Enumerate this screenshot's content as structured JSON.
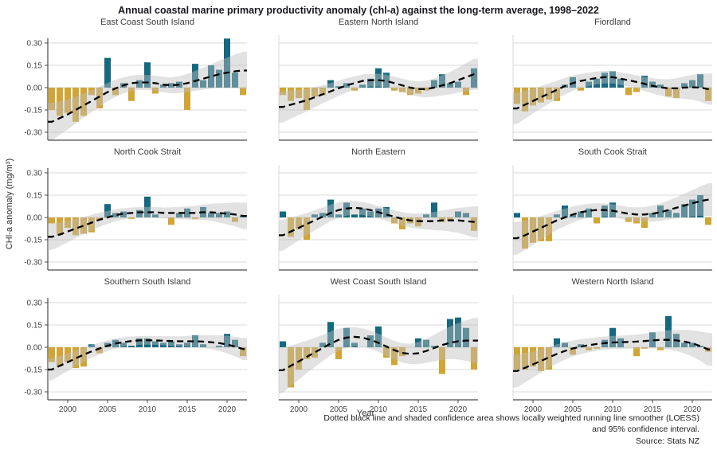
{
  "title": "Annual coastal marine primary productivity anomaly (chl-a) against the long-term average, 1998–2022",
  "y_axis": {
    "label": "CHl-a anomaly (mg/m³)",
    "ticks": [
      "0.30",
      "0.15",
      "0.00",
      "-0.15",
      "-0.30"
    ],
    "tick_values": [
      0.3,
      0.15,
      0,
      -0.15,
      -0.3
    ]
  },
  "x_axis": {
    "label": "Year",
    "ticks": [
      "2000",
      "2005",
      "2010",
      "2015",
      "2020"
    ],
    "tick_years": [
      2000,
      2005,
      2010,
      2015,
      2020
    ]
  },
  "footnote": "Dotted black line and shaded confidence area shows locally weighted running line smoother (LOESS) and 95% confidence interval.",
  "source": "Source: Stats NZ",
  "colors": {
    "positive": "#15687F",
    "negative": "#D0A535",
    "band": "#BFBFBF",
    "loess": "#000000",
    "grid": "#D8D8D8",
    "axis": "#4A4A4A",
    "tick_text": "#444444"
  },
  "chart_data": {
    "type": "bar",
    "title": "Annual coastal marine primary productivity anomaly (chl-a) against the long-term average, 1998–2022",
    "xlabel": "Year",
    "ylabel": "CHl-a anomaly (mg/m³)",
    "ylim": [
      -0.35,
      0.35
    ],
    "grid": true,
    "x": [
      1998,
      1999,
      2000,
      2001,
      2002,
      2003,
      2004,
      2005,
      2006,
      2007,
      2008,
      2009,
      2010,
      2011,
      2012,
      2013,
      2014,
      2015,
      2016,
      2017,
      2018,
      2019,
      2020,
      2021,
      2022
    ],
    "series": [
      {
        "name": "East Coast South Island",
        "values": [
          -0.15,
          -0.19,
          -0.17,
          -0.23,
          -0.19,
          -0.05,
          -0.14,
          0.2,
          -0.05,
          0.03,
          -0.09,
          0.05,
          0.17,
          -0.04,
          0.02,
          0.03,
          0.04,
          -0.15,
          0.16,
          0.05,
          0.15,
          0.12,
          0.33,
          0.1,
          -0.05
        ],
        "loess": [
          -0.23,
          -0.205,
          -0.18,
          -0.15,
          -0.12,
          -0.09,
          -0.06,
          -0.03,
          -0.005,
          0.015,
          0.03,
          0.035,
          0.035,
          0.03,
          0.02,
          0.015,
          0.02,
          0.03,
          0.045,
          0.06,
          0.075,
          0.09,
          0.1,
          0.11,
          0.115
        ],
        "ci_scale": 1.2
      },
      {
        "name": "Eastern North Island",
        "values": [
          -0.05,
          -0.09,
          -0.07,
          -0.15,
          -0.06,
          -0.05,
          0.05,
          0.01,
          0.03,
          -0.02,
          0.02,
          0.06,
          0.13,
          0.1,
          -0.02,
          -0.03,
          -0.05,
          -0.04,
          -0.02,
          0.05,
          0.09,
          0.03,
          0.04,
          -0.05,
          0.13
        ],
        "loess": [
          -0.13,
          -0.115,
          -0.1,
          -0.085,
          -0.065,
          -0.045,
          -0.025,
          -0.005,
          0.015,
          0.03,
          0.045,
          0.05,
          0.05,
          0.045,
          0.03,
          0.015,
          0.0,
          -0.01,
          -0.01,
          0.0,
          0.015,
          0.03,
          0.05,
          0.07,
          0.09
        ],
        "ci_scale": 1.0
      },
      {
        "name": "Fiordland",
        "values": [
          -0.11,
          -0.16,
          -0.12,
          -0.1,
          -0.08,
          -0.09,
          0.02,
          0.07,
          -0.02,
          0.04,
          0.06,
          0.1,
          0.11,
          0.06,
          -0.05,
          -0.03,
          0.08,
          0.04,
          0.02,
          -0.06,
          -0.07,
          0.03,
          0.05,
          0.09,
          -0.09
        ],
        "loess": [
          -0.14,
          -0.115,
          -0.09,
          -0.065,
          -0.04,
          -0.015,
          0.01,
          0.03,
          0.045,
          0.055,
          0.065,
          0.07,
          0.07,
          0.06,
          0.05,
          0.038,
          0.025,
          0.012,
          0.002,
          -0.005,
          -0.005,
          0.0,
          0.002,
          0.0,
          -0.01
        ],
        "ci_scale": 1.0
      },
      {
        "name": "North Cook Strait",
        "values": [
          -0.04,
          -0.12,
          -0.07,
          -0.12,
          -0.11,
          -0.1,
          -0.02,
          0.09,
          0.03,
          0.04,
          -0.01,
          0.05,
          0.14,
          0.02,
          0.0,
          -0.05,
          0.03,
          0.06,
          -0.01,
          0.07,
          0.03,
          0.03,
          0.04,
          -0.03,
          0.01
        ],
        "loess": [
          -0.13,
          -0.115,
          -0.095,
          -0.075,
          -0.055,
          -0.035,
          -0.015,
          0.0,
          0.015,
          0.025,
          0.03,
          0.035,
          0.035,
          0.035,
          0.03,
          0.03,
          0.03,
          0.03,
          0.03,
          0.035,
          0.035,
          0.03,
          0.025,
          0.02,
          0.01
        ],
        "ci_scale": 0.85
      },
      {
        "name": "North Eastern",
        "values": [
          0.04,
          -0.13,
          -0.08,
          -0.15,
          0.02,
          0.03,
          0.12,
          0.02,
          0.1,
          0.02,
          0.06,
          0.04,
          0.06,
          0.07,
          -0.04,
          -0.08,
          -0.04,
          -0.06,
          0.02,
          0.1,
          -0.03,
          -0.02,
          0.04,
          0.03,
          -0.09
        ],
        "loess": [
          -0.12,
          -0.095,
          -0.07,
          -0.045,
          -0.02,
          0.005,
          0.03,
          0.05,
          0.06,
          0.065,
          0.06,
          0.05,
          0.035,
          0.02,
          0.005,
          -0.01,
          -0.02,
          -0.025,
          -0.025,
          -0.025,
          -0.02,
          -0.02,
          -0.02,
          -0.025,
          -0.03
        ],
        "ci_scale": 1.0
      },
      {
        "name": "South Cook Strait",
        "values": [
          0.03,
          -0.21,
          -0.17,
          -0.16,
          -0.16,
          0.02,
          0.08,
          0.02,
          0.04,
          0.06,
          -0.04,
          0.08,
          0.1,
          0.0,
          -0.03,
          -0.04,
          -0.07,
          0.03,
          0.08,
          0.05,
          0.03,
          0.09,
          0.12,
          0.15,
          -0.05
        ],
        "loess": [
          -0.14,
          -0.12,
          -0.095,
          -0.07,
          -0.045,
          -0.02,
          0.0,
          0.02,
          0.035,
          0.045,
          0.05,
          0.05,
          0.045,
          0.035,
          0.025,
          0.02,
          0.02,
          0.025,
          0.035,
          0.05,
          0.065,
          0.08,
          0.095,
          0.11,
          0.12
        ],
        "ci_scale": 1.05
      },
      {
        "name": "Southern South Island",
        "values": [
          -0.1,
          -0.13,
          -0.1,
          -0.14,
          -0.13,
          0.02,
          -0.04,
          0.03,
          0.05,
          0.03,
          0.01,
          0.06,
          0.06,
          0.04,
          0.03,
          0.04,
          0.02,
          0.03,
          0.08,
          0.02,
          0.0,
          0.01,
          0.09,
          0.05,
          -0.06
        ],
        "loess": [
          -0.15,
          -0.125,
          -0.1,
          -0.075,
          -0.05,
          -0.028,
          -0.008,
          0.01,
          0.025,
          0.035,
          0.042,
          0.046,
          0.047,
          0.046,
          0.044,
          0.042,
          0.04,
          0.04,
          0.04,
          0.038,
          0.034,
          0.028,
          0.018,
          0.005,
          -0.012
        ],
        "ci_scale": 0.7
      },
      {
        "name": "West Coast South Island",
        "values": [
          0.04,
          -0.27,
          -0.15,
          -0.08,
          -0.07,
          0.03,
          0.17,
          -0.08,
          0.13,
          0.03,
          0.0,
          0.08,
          0.14,
          -0.07,
          -0.12,
          -0.06,
          0.0,
          0.06,
          0.05,
          0.01,
          -0.18,
          0.19,
          0.2,
          0.13,
          -0.15
        ],
        "loess": [
          -0.155,
          -0.125,
          -0.095,
          -0.065,
          -0.035,
          -0.005,
          0.025,
          0.05,
          0.065,
          0.07,
          0.065,
          0.05,
          0.03,
          0.005,
          -0.02,
          -0.038,
          -0.045,
          -0.04,
          -0.025,
          -0.005,
          0.015,
          0.03,
          0.04,
          0.045,
          0.045
        ],
        "ci_scale": 1.45
      },
      {
        "name": "Western North Island",
        "values": [
          -0.15,
          -0.15,
          -0.13,
          -0.16,
          -0.15,
          0.06,
          0.03,
          -0.05,
          0.02,
          -0.02,
          -0.01,
          0.05,
          0.13,
          0.06,
          0.0,
          -0.06,
          -0.01,
          0.1,
          -0.02,
          0.21,
          0.09,
          0.03,
          0.03,
          0.01,
          -0.03
        ],
        "loess": [
          -0.16,
          -0.138,
          -0.115,
          -0.092,
          -0.068,
          -0.045,
          -0.025,
          -0.008,
          0.004,
          0.014,
          0.022,
          0.028,
          0.032,
          0.034,
          0.036,
          0.038,
          0.042,
          0.046,
          0.05,
          0.05,
          0.046,
          0.038,
          0.026,
          0.008,
          -0.015
        ],
        "ci_scale": 1.05
      }
    ]
  }
}
